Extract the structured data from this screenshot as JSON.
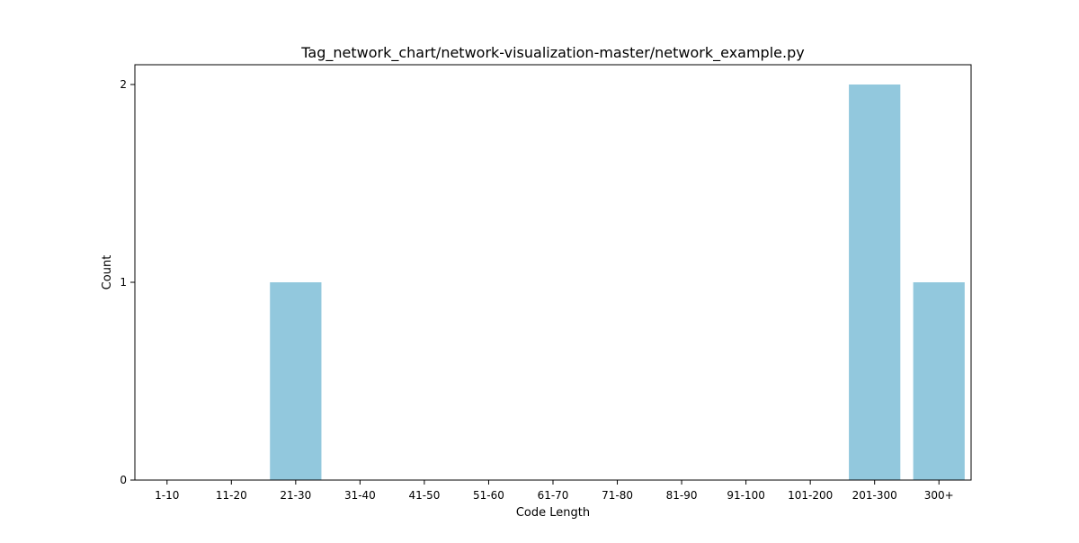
{
  "chart_data": {
    "type": "bar",
    "title": "Tag_network_chart/network-visualization-master/network_example.py",
    "xlabel": "Code Length",
    "ylabel": "Count",
    "categories": [
      "1-10",
      "11-20",
      "21-30",
      "31-40",
      "41-50",
      "51-60",
      "61-70",
      "71-80",
      "81-90",
      "91-100",
      "101-200",
      "201-300",
      "300+"
    ],
    "values": [
      0,
      0,
      1,
      0,
      0,
      0,
      0,
      0,
      0,
      0,
      0,
      2,
      1
    ],
    "yticks": [
      "0",
      "1",
      "2"
    ],
    "ylim": [
      0,
      2.1
    ],
    "bar_color": "#92c8dd",
    "grid": false,
    "legend": "none"
  }
}
